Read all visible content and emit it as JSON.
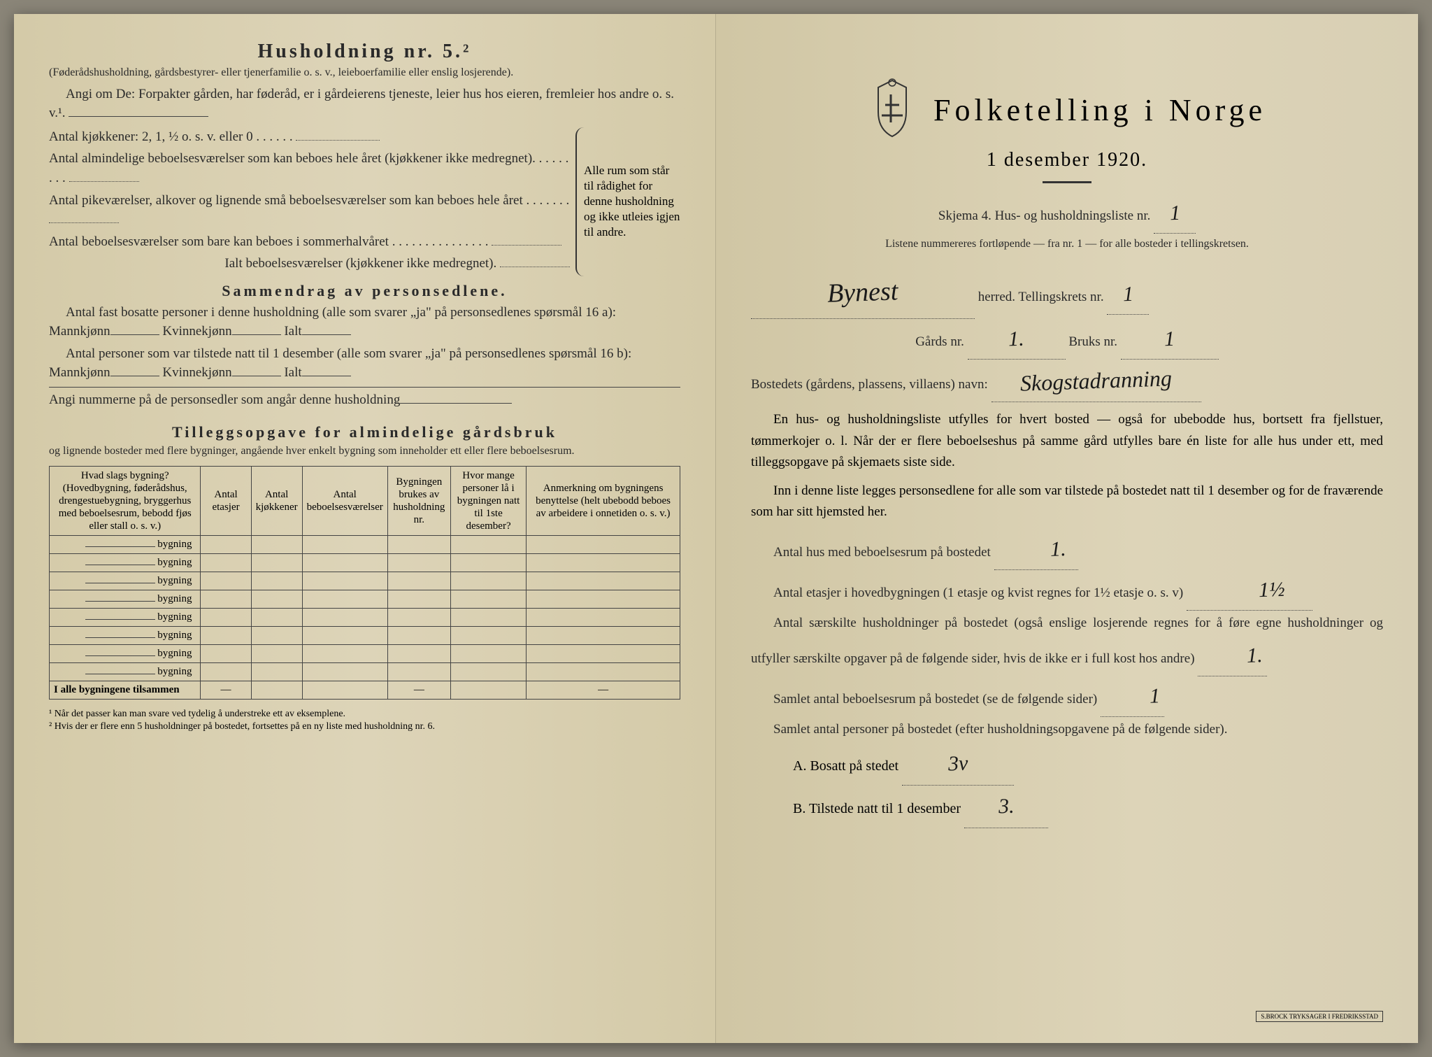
{
  "left": {
    "household_title": "Husholdning nr. 5.²",
    "household_sub": "(Føderådshusholdning, gårdsbestyrer- eller tjenerfamilie o. s. v., leieboerfamilie eller enslig losjerende).",
    "intro": "Angi om De: Forpakter gården, har føderåd, er i gårdeierens tjeneste, leier hus hos eieren, fremleier hos andre o. s. v.¹.",
    "kitchens": "Antal kjøkkener: 2, 1, ½ o. s. v. eller 0",
    "rooms_all_year": "Antal almindelige beboelsesværelser som kan beboes hele året (kjøkkener ikke medregnet).",
    "maid_rooms": "Antal pikeværelser, alkover og lignende små beboelsesværelser som kan beboes hele året",
    "summer_rooms": "Antal beboelsesværelser som bare kan beboes i sommerhalvåret",
    "total_rooms": "Ialt beboelsesværelser (kjøkkener ikke medregnet).",
    "brace_text": "Alle rum som står til rådighet for denne husholdning og ikke utleies igjen til andre.",
    "summary_title": "Sammendrag av personsedlene.",
    "summary_line1": "Antal fast bosatte personer i denne husholdning (alle som svarer „ja\" på personsedlenes spørsmål 16 a): Mannkjønn",
    "kvinnekjonn": "Kvinnekjønn",
    "ialt": "Ialt",
    "summary_line2": "Antal personer som var tilstede natt til 1 desember (alle som svarer „ja\" på personsedlenes spørsmål 16 b): Mannkjønn",
    "summary_line3": "Angi nummerne på de personsedler som angår denne husholdning",
    "tillegg_title": "Tilleggsopgave for almindelige gårdsbruk",
    "tillegg_sub": "og lignende bosteder med flere bygninger, angående hver enkelt bygning som inneholder ett eller flere beboelsesrum.",
    "table": {
      "headers": [
        "Hvad slags bygning?\n(Hovedbygning, føderådshus, drengestuebygning, bryggerhus med beboelsesrum, bebodd fjøs eller stall o. s. v.)",
        "Antal etasjer",
        "Antal kjøkkener",
        "Antal beboelsesværelser",
        "Bygningen brukes av husholdning nr.",
        "Hvor mange personer lå i bygningen natt til 1ste desember?",
        "Anmerkning om bygningens benyttelse (helt ubebodd beboes av arbeidere i onnetiden o. s. v.)"
      ],
      "row_label": "bygning",
      "row_count": 8,
      "footer_label": "I alle bygningene tilsammen",
      "dash": "—"
    },
    "footnote1": "¹ Når det passer kan man svare ved tydelig å understreke ett av eksemplene.",
    "footnote2": "² Hvis der er flere enn 5 husholdninger på bostedet, fortsettes på en ny liste med husholdning nr. 6."
  },
  "right": {
    "main_title": "Folketelling i Norge",
    "date": "1 desember 1920.",
    "skjema": "Skjema 4.  Hus- og husholdningsliste nr.",
    "skjema_val": "1",
    "listene": "Listene nummereres fortløpende — fra nr. 1 — for alle bosteder i tellingskretsen.",
    "herred_val": "Bynest",
    "herred_label": "herred.  Tellingskrets nr.",
    "tellingskrets_val": "1",
    "gards_label": "Gårds nr.",
    "gards_val": "1.",
    "bruks_label": "Bruks nr.",
    "bruks_val": "1",
    "bosted_label": "Bostedets (gårdens, plassens, villaens) navn:",
    "bosted_val": "Skogstadranning",
    "para1": "En hus- og husholdningsliste utfylles for hvert bosted — også for ubebodde hus, bortsett fra fjellstuer, tømmerkojer o. l. Når der er flere beboelseshus på samme gård utfylles bare én liste for alle hus under ett, med tilleggsopgave på skjemaets siste side.",
    "para2": "Inn i denne liste legges personsedlene for alle som var tilstede på bostedet natt til 1 desember og for de fraværende som har sitt hjemsted her.",
    "antal_hus": "Antal hus med beboelsesrum på bostedet",
    "antal_hus_val": "1.",
    "antal_etasjer": "Antal etasjer i hovedbygningen (1 etasje og kvist regnes for 1½ etasje o. s. v)",
    "antal_etasjer_val": "1½",
    "antal_hush": "Antal særskilte husholdninger på bostedet (også enslige losjerende regnes for å føre egne husholdninger og utfyller særskilte opgaver på de følgende sider, hvis de ikke er i full kost hos andre)",
    "antal_hush_val": "1.",
    "samlet_rum": "Samlet antal beboelsesrum på bostedet (se de følgende sider)",
    "samlet_rum_val": "1",
    "samlet_pers": "Samlet antal personer på bostedet (efter husholdningsopgavene på de følgende sider).",
    "a_label": "A.  Bosatt på stedet",
    "a_val": "3v",
    "b_label": "B.  Tilstede natt til 1 desember",
    "b_val": "3.",
    "printer": "S.BROCK TRYKSAGER\nI FREDRIKSSTAD"
  }
}
